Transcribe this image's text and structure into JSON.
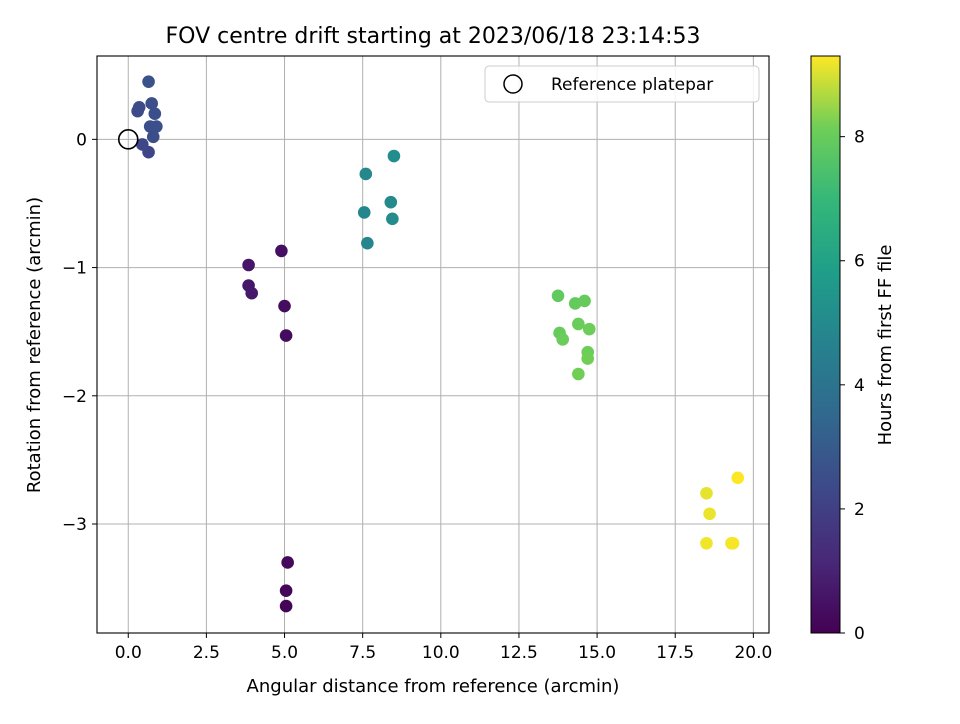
{
  "chart_data": {
    "type": "scatter",
    "title": "FOV centre drift starting at 2023/06/18 23:14:53",
    "xlabel": "Angular distance from reference (arcmin)",
    "ylabel": "Rotation from reference (arcmin)",
    "xlim": [
      -1.0,
      20.5
    ],
    "ylim": [
      -3.85,
      0.65
    ],
    "xticks": [
      0.0,
      2.5,
      5.0,
      7.5,
      10.0,
      12.5,
      15.0,
      17.5,
      20.0
    ],
    "xtick_labels": [
      "0.0",
      "2.5",
      "5.0",
      "7.5",
      "10.0",
      "12.5",
      "15.0",
      "17.5",
      "20.0"
    ],
    "yticks": [
      0,
      -1,
      -2,
      -3
    ],
    "ytick_labels": [
      "0",
      "−1",
      "−2",
      "−3"
    ],
    "grid": true,
    "legend": {
      "position": "top-right",
      "entries": [
        "Reference platepar"
      ]
    },
    "reference_point": {
      "x": 0.0,
      "y": 0.0
    },
    "colorbar": {
      "label": "Hours from first FF file",
      "colormap": "viridis",
      "range": [
        0,
        9.3
      ],
      "ticks": [
        0,
        2,
        4,
        6,
        8
      ],
      "tick_labels": [
        "0",
        "2",
        "4",
        "6",
        "8"
      ]
    },
    "points": [
      {
        "x": 5.05,
        "y": -3.64,
        "t": 0.1
      },
      {
        "x": 5.05,
        "y": -3.52,
        "t": 0.15
      },
      {
        "x": 5.1,
        "y": -3.3,
        "t": 0.2
      },
      {
        "x": 5.05,
        "y": -1.53,
        "t": 0.3
      },
      {
        "x": 5.0,
        "y": -1.3,
        "t": 0.35
      },
      {
        "x": 4.9,
        "y": -0.87,
        "t": 0.4
      },
      {
        "x": 3.85,
        "y": -0.98,
        "t": 0.6
      },
      {
        "x": 3.85,
        "y": -1.14,
        "t": 0.65
      },
      {
        "x": 3.95,
        "y": -1.2,
        "t": 0.7
      },
      {
        "x": 0.65,
        "y": -0.1,
        "t": 2.2
      },
      {
        "x": 0.45,
        "y": -0.04,
        "t": 2.3
      },
      {
        "x": 0.3,
        "y": 0.22,
        "t": 2.4
      },
      {
        "x": 0.35,
        "y": 0.25,
        "t": 2.4
      },
      {
        "x": 0.7,
        "y": 0.1,
        "t": 2.5
      },
      {
        "x": 0.8,
        "y": 0.02,
        "t": 2.5
      },
      {
        "x": 0.9,
        "y": 0.1,
        "t": 2.55
      },
      {
        "x": 0.85,
        "y": 0.2,
        "t": 2.6
      },
      {
        "x": 0.75,
        "y": 0.28,
        "t": 2.6
      },
      {
        "x": 0.65,
        "y": 0.45,
        "t": 2.65
      },
      {
        "x": 7.55,
        "y": -0.57,
        "t": 4.8
      },
      {
        "x": 7.65,
        "y": -0.81,
        "t": 4.85
      },
      {
        "x": 7.6,
        "y": -0.27,
        "t": 4.9
      },
      {
        "x": 8.4,
        "y": -0.49,
        "t": 5.0
      },
      {
        "x": 8.45,
        "y": -0.62,
        "t": 5.05
      },
      {
        "x": 8.5,
        "y": -0.13,
        "t": 5.1
      },
      {
        "x": 13.75,
        "y": -1.22,
        "t": 7.9
      },
      {
        "x": 14.3,
        "y": -1.28,
        "t": 7.95
      },
      {
        "x": 14.6,
        "y": -1.26,
        "t": 8.0
      },
      {
        "x": 13.8,
        "y": -1.51,
        "t": 8.0
      },
      {
        "x": 13.9,
        "y": -1.56,
        "t": 8.05
      },
      {
        "x": 14.4,
        "y": -1.44,
        "t": 8.05
      },
      {
        "x": 14.75,
        "y": -1.48,
        "t": 8.1
      },
      {
        "x": 14.7,
        "y": -1.66,
        "t": 8.1
      },
      {
        "x": 14.7,
        "y": -1.71,
        "t": 8.15
      },
      {
        "x": 14.4,
        "y": -1.83,
        "t": 8.15
      },
      {
        "x": 18.5,
        "y": -2.76,
        "t": 9.1
      },
      {
        "x": 18.6,
        "y": -2.92,
        "t": 9.15
      },
      {
        "x": 18.5,
        "y": -3.15,
        "t": 9.2
      },
      {
        "x": 19.3,
        "y": -3.15,
        "t": 9.2
      },
      {
        "x": 19.35,
        "y": -3.15,
        "t": 9.25
      },
      {
        "x": 19.5,
        "y": -2.64,
        "t": 9.3
      }
    ]
  }
}
